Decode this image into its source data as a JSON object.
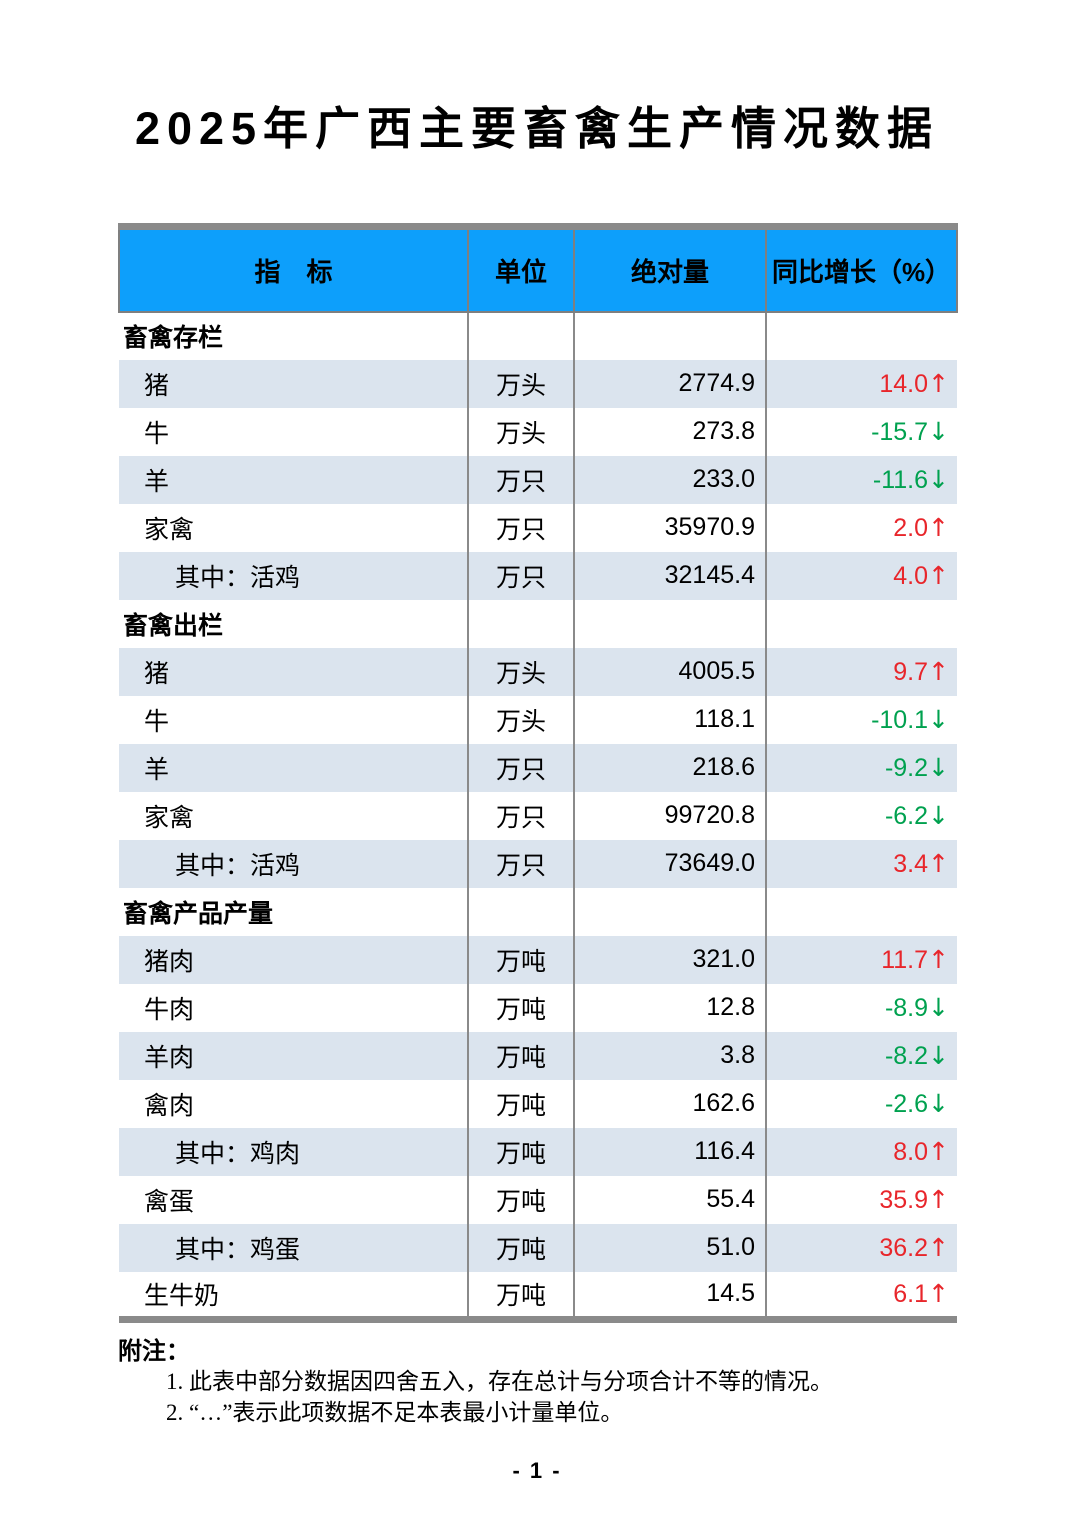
{
  "page": {
    "title": "2025年广西主要畜禽生产情况数据",
    "page_number": "- 1 -"
  },
  "colors": {
    "header_blue": "#0d9ffb",
    "band_blue": "#dbe4ee",
    "increase_red": "#e8262b",
    "decrease_green": "#00a14f",
    "border_gray": "#8a8a8a"
  },
  "table": {
    "headers": {
      "indicator": "指　标",
      "unit": "单位",
      "absolute": "绝对量",
      "growth": "同比增长（%）"
    },
    "trend_icons": {
      "up": "↑",
      "down": "↓"
    },
    "rows": [
      {
        "section": true,
        "label": "畜禽存栏"
      },
      {
        "label": "猪",
        "unit": "万头",
        "value": "2774.9",
        "growth": "14.0",
        "trend": "up"
      },
      {
        "label": "牛",
        "unit": "万头",
        "value": "273.8",
        "growth": "-15.7",
        "trend": "down"
      },
      {
        "label": "羊",
        "unit": "万只",
        "value": "233.0",
        "growth": "-11.6",
        "trend": "down"
      },
      {
        "label": "家禽",
        "unit": "万只",
        "value": "35970.9",
        "growth": "2.0",
        "trend": "up"
      },
      {
        "label": "其中：活鸡",
        "indent": 2,
        "unit": "万只",
        "value": "32145.4",
        "growth": "4.0",
        "trend": "up"
      },
      {
        "section": true,
        "label": "畜禽出栏"
      },
      {
        "label": "猪",
        "unit": "万头",
        "value": "4005.5",
        "growth": "9.7",
        "trend": "up"
      },
      {
        "label": "牛",
        "unit": "万头",
        "value": "118.1",
        "growth": "-10.1",
        "trend": "down"
      },
      {
        "label": "羊",
        "unit": "万只",
        "value": "218.6",
        "growth": "-9.2",
        "trend": "down"
      },
      {
        "label": "家禽",
        "unit": "万只",
        "value": "99720.8",
        "growth": "-6.2",
        "trend": "down"
      },
      {
        "label": "其中：活鸡",
        "indent": 2,
        "unit": "万只",
        "value": "73649.0",
        "growth": "3.4",
        "trend": "up"
      },
      {
        "section": true,
        "label": "畜禽产品产量"
      },
      {
        "label": "猪肉",
        "unit": "万吨",
        "value": "321.0",
        "growth": "11.7",
        "trend": "up"
      },
      {
        "label": "牛肉",
        "unit": "万吨",
        "value": "12.8",
        "growth": "-8.9",
        "trend": "down"
      },
      {
        "label": "羊肉",
        "unit": "万吨",
        "value": "3.8",
        "growth": "-8.2",
        "trend": "down"
      },
      {
        "label": "禽肉",
        "unit": "万吨",
        "value": "162.6",
        "growth": "-2.6",
        "trend": "down"
      },
      {
        "label": "其中：鸡肉",
        "indent": 2,
        "unit": "万吨",
        "value": "116.4",
        "growth": "8.0",
        "trend": "up"
      },
      {
        "label": "禽蛋",
        "unit": "万吨",
        "value": "55.4",
        "growth": "35.9",
        "trend": "up"
      },
      {
        "label": "其中：鸡蛋",
        "indent": 2,
        "unit": "万吨",
        "value": "51.0",
        "growth": "36.2",
        "trend": "up"
      },
      {
        "label": "生牛奶",
        "unit": "万吨",
        "value": "14.5",
        "growth": "6.1",
        "trend": "up"
      }
    ]
  },
  "notes": {
    "label": "附注：",
    "items": [
      "1. 此表中部分数据因四舍五入，存在总计与分项合计不等的情况。",
      "2. “…”表示此项数据不足本表最小计量单位。"
    ]
  }
}
